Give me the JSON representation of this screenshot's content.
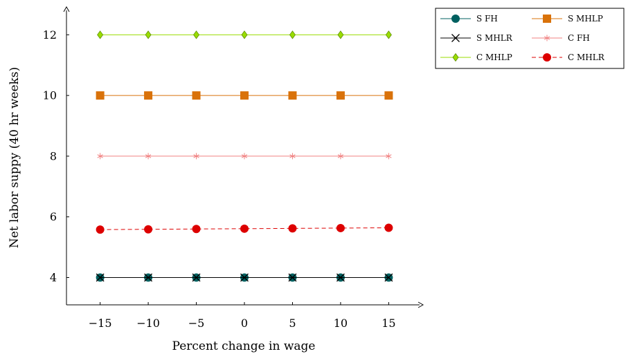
{
  "chart_data": {
    "type": "line",
    "title": "",
    "xlabel": "Percent change in wage",
    "ylabel": "Net labor suppy (40 hr weeks)",
    "x": [
      -15,
      -10,
      -5,
      0,
      5,
      10,
      15
    ],
    "x_ticks": [
      -15,
      -10,
      -5,
      0,
      5,
      10,
      15
    ],
    "x_tick_labels": [
      "−15",
      "−10",
      "−5",
      "0",
      "5",
      "10",
      "15"
    ],
    "y_ticks": [
      4,
      6,
      8,
      10,
      12
    ],
    "y_tick_labels": [
      "4",
      "6",
      "8",
      "10",
      "12"
    ],
    "xlim": [
      -18.5,
      18.5
    ],
    "ylim": [
      3.1,
      12.85
    ],
    "grid": false,
    "legend_position": "outside top-right",
    "series": [
      {
        "name": "S FH",
        "values": [
          4,
          4,
          4,
          4,
          4,
          4,
          4
        ],
        "color": "#006060",
        "marker": "circle",
        "dashed": false
      },
      {
        "name": "S MHLP",
        "values": [
          10,
          10,
          10,
          10,
          10,
          10,
          10
        ],
        "color": "#d9720a",
        "marker": "square",
        "dashed": false
      },
      {
        "name": "S MHLR",
        "values": [
          4,
          4,
          4,
          4,
          4,
          4,
          4
        ],
        "color": "#000000",
        "marker": "x",
        "dashed": false
      },
      {
        "name": "C FH",
        "values": [
          8,
          8,
          8,
          8,
          8,
          8,
          8
        ],
        "color": "#f08080",
        "marker": "star",
        "dashed": false
      },
      {
        "name": "C MHLP",
        "values": [
          12,
          12,
          12,
          12,
          12,
          12,
          12
        ],
        "color": "#99dd00",
        "marker": "diamond",
        "dashed": false
      },
      {
        "name": "C MHLR",
        "values": [
          5.58,
          5.59,
          5.6,
          5.61,
          5.62,
          5.63,
          5.64
        ],
        "color": "#dd0000",
        "marker": "circle",
        "dashed": true
      }
    ]
  }
}
